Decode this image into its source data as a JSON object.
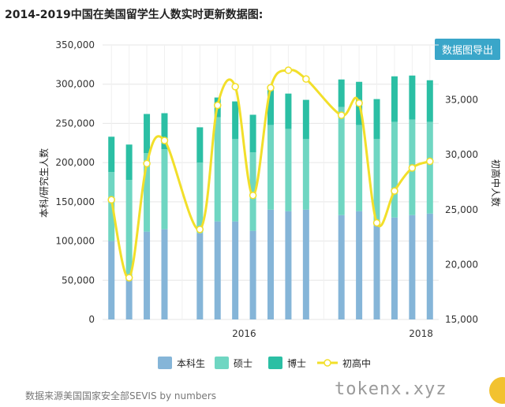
{
  "title": "2014-2019中国在美国留学生人数实时更新数据图:",
  "export_label": "数据图导出",
  "source": "数据来源美国国家安全部SEVIS by numbers",
  "watermark": "tokenx.xyz",
  "colors": {
    "undergrad": "#85b5d8",
    "master": "#6fd6c2",
    "phd": "#2bbfa4",
    "k12": "#f2df2a",
    "grid": "#e6e6e6"
  },
  "chart_data": {
    "type": "bar",
    "stacked": true,
    "ylabel": "本科/研究生人数",
    "ylabel_right": "初高中人数",
    "ylim": [
      0,
      350000
    ],
    "ylim_right": [
      15000,
      40000
    ],
    "y_ticks": [
      "0",
      "50,000",
      "100,000",
      "150,000",
      "200,000",
      "250,000",
      "300,000",
      "350,000"
    ],
    "y_ticks_right": [
      "15,000",
      "20,000",
      "25,000",
      "30,000",
      "35,000"
    ],
    "x_ticks": [
      {
        "label": "2016",
        "index": 7.5
      },
      {
        "label": "2018",
        "index": 17.5
      }
    ],
    "legend_position": "bottom",
    "grid": true,
    "series": [
      {
        "name": "本科生",
        "values": [
          100000,
          50000,
          112000,
          115000,
          110000,
          125000,
          125000,
          113000,
          140000,
          138000,
          140000,
          133000,
          138000,
          122000,
          130000,
          133000,
          135000
        ]
      },
      {
        "name": "硕士",
        "values": [
          88000,
          128000,
          100000,
          102000,
          90000,
          133000,
          105000,
          100000,
          108000,
          105000,
          90000,
          138000,
          110000,
          108000,
          122000,
          122000,
          117000
        ]
      },
      {
        "name": "博士",
        "values": [
          45000,
          45000,
          50000,
          46000,
          45000,
          25000,
          48000,
          48000,
          47000,
          45000,
          50000,
          35000,
          55000,
          51000,
          58000,
          56000,
          53000
        ]
      }
    ],
    "bar_index": [
      0,
      1,
      2,
      3,
      5,
      6,
      7,
      8,
      9,
      10,
      11,
      13,
      14,
      15,
      16,
      17,
      18
    ],
    "line": {
      "name": "初高中",
      "points": [
        [
          0,
          25900
        ],
        [
          1,
          18800
        ],
        [
          2,
          29200
        ],
        [
          3,
          31300
        ],
        [
          5,
          23200
        ],
        [
          6,
          34500
        ],
        [
          7,
          36200
        ],
        [
          8,
          26300
        ],
        [
          9,
          36100
        ],
        [
          10,
          37700
        ],
        [
          11,
          36900
        ],
        [
          13,
          33600
        ],
        [
          14,
          34700
        ],
        [
          15,
          23800
        ],
        [
          16,
          26700
        ],
        [
          17,
          28800
        ],
        [
          18,
          29400
        ]
      ]
    }
  }
}
